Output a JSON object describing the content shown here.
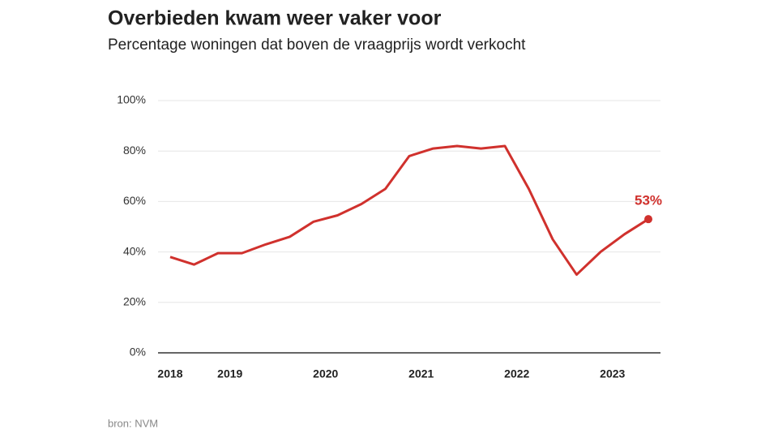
{
  "chart_data": {
    "type": "line",
    "title": "Overbieden kwam weer vaker voor",
    "subtitle": "Percentage woningen dat boven de vraagprijs wordt verkocht",
    "source": "bron: NVM",
    "categories": [
      "2018",
      null,
      "2019",
      null,
      null,
      null,
      "2020",
      null,
      null,
      null,
      "2021",
      null,
      null,
      null,
      "2022",
      null,
      null,
      null,
      "2023",
      null,
      null
    ],
    "series": [
      {
        "name": "Overbieden",
        "color": "#d0312d",
        "values": [
          38,
          35,
          39.5,
          39.5,
          43,
          46,
          52,
          54.5,
          59,
          65,
          78,
          81,
          82,
          81,
          82,
          65,
          45,
          31,
          40,
          47,
          53
        ],
        "value_labels": [
          null,
          null,
          null,
          null,
          null,
          null,
          null,
          null,
          null,
          null,
          null,
          null,
          null,
          null,
          null,
          null,
          null,
          null,
          null,
          null,
          "53%"
        ]
      }
    ],
    "ylim": [
      0,
      100
    ],
    "yticks": [
      {
        "value": 0,
        "label": "0%"
      },
      {
        "value": 20,
        "label": "20%"
      },
      {
        "value": 40,
        "label": "40%"
      },
      {
        "value": 60,
        "label": "60%"
      },
      {
        "value": 80,
        "label": "80%"
      },
      {
        "value": 100,
        "label": "100%"
      }
    ],
    "grid": true
  }
}
